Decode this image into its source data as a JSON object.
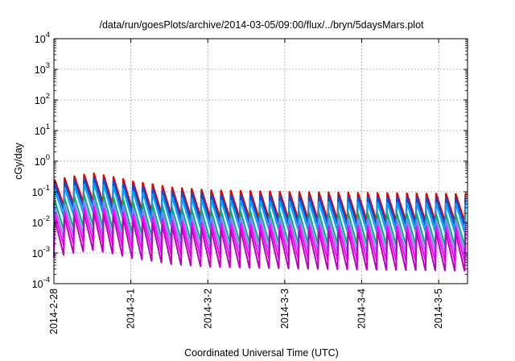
{
  "chart_data": {
    "type": "line",
    "title": "/data/run/goesPlots/archive/2014-03-05/09:00/flux/../bryn/5daysMars.plot",
    "xlabel": "Coordinated Universal Time (UTC)",
    "ylabel": "cGy/day",
    "y_scale": "log",
    "ylim": [
      0.0001,
      10000
    ],
    "y_ticks": [
      {
        "value": 0.0001,
        "base": "10",
        "exp": "-4"
      },
      {
        "value": 0.001,
        "base": "10",
        "exp": "-3"
      },
      {
        "value": 0.01,
        "base": "10",
        "exp": "-2"
      },
      {
        "value": 0.1,
        "base": "10",
        "exp": "-1"
      },
      {
        "value": 1,
        "base": "10",
        "exp": "0"
      },
      {
        "value": 10,
        "base": "10",
        "exp": "1"
      },
      {
        "value": 100,
        "base": "10",
        "exp": "2"
      },
      {
        "value": 1000,
        "base": "10",
        "exp": "3"
      },
      {
        "value": 10000,
        "base": "10",
        "exp": "4"
      }
    ],
    "xlim": [
      "2014-02-28T00:00",
      "2014-03-05T09:00"
    ],
    "x_ticks": [
      "2014-2-28",
      "2014-3-1",
      "2014-3-2",
      "2014-3-3",
      "2014-3-4",
      "2014-3-5"
    ],
    "x_tick_dates": [
      "2014-02-28T00:00",
      "2014-03-01T00:00",
      "2014-03-02T00:00",
      "2014-03-03T00:00",
      "2014-03-04T00:00",
      "2014-03-05T00:00"
    ],
    "grid": true,
    "legend": "none",
    "cycle_hours": 3.05,
    "envelope": {
      "t": [
        "2014-02-28T00:00",
        "2014-02-28T12:00",
        "2014-03-01T00:00",
        "2014-03-01T12:00",
        "2014-03-02T00:00",
        "2014-03-03T00:00",
        "2014-03-04T00:00",
        "2014-03-05T09:00"
      ],
      "factor": [
        0.6,
        1.0,
        0.55,
        0.35,
        0.28,
        0.25,
        0.23,
        0.21
      ]
    },
    "series": [
      {
        "color": "#e00000",
        "peak": 0.42,
        "trough": 0.05
      },
      {
        "color": "#0050e0",
        "peak": 0.3,
        "trough": 0.035
      },
      {
        "color": "#00a0ff",
        "peak": 0.2,
        "trough": 0.022
      },
      {
        "color": "#00b070",
        "peak": 0.09,
        "trough": 0.008
      },
      {
        "color": "#8080ff",
        "peak": 0.055,
        "trough": 0.0045
      },
      {
        "color": "#ff00ff",
        "peak": 0.035,
        "trough": 0.0025
      },
      {
        "color": "#c000c0",
        "peak": 0.022,
        "trough": 0.0012
      }
    ]
  }
}
